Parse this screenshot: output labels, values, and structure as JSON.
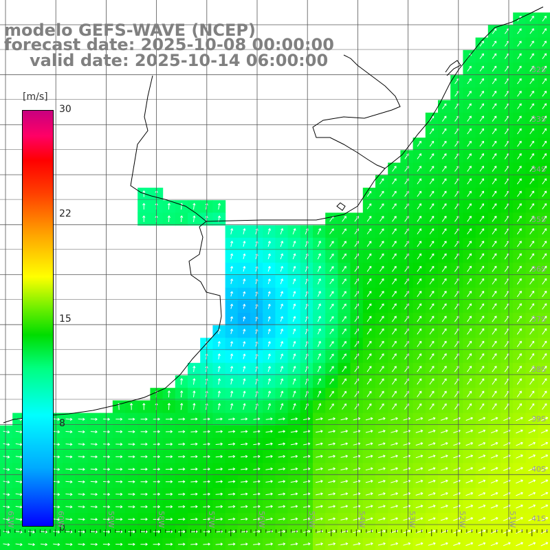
{
  "title": {
    "model": "modelo GEFS-WAVE (NCEP)",
    "forecast": "forecast date: 2025-10-08 00:00:00",
    "valid": "valid date: 2025-10-14 06:00:00"
  },
  "colorbar": {
    "unit": "[m/s]",
    "ticks": [
      "30",
      "22",
      "15",
      "8",
      "0"
    ]
  },
  "map": {
    "lat_labels": [
      "32S",
      "33S",
      "34S",
      "35S",
      "36S",
      "37S",
      "38S",
      "39S",
      "40S",
      "41S"
    ],
    "lon_labels": [
      "61W",
      "60W",
      "59W",
      "58W",
      "57W",
      "56W",
      "55W",
      "54W",
      "53W",
      "52W",
      "51W"
    ],
    "field": "wind speed with direction arrows",
    "colors": {
      "land": "#ffffff",
      "coast": "#000000",
      "grid": "#555555",
      "arrow": "#ffffff",
      "label": "#808080"
    }
  }
}
